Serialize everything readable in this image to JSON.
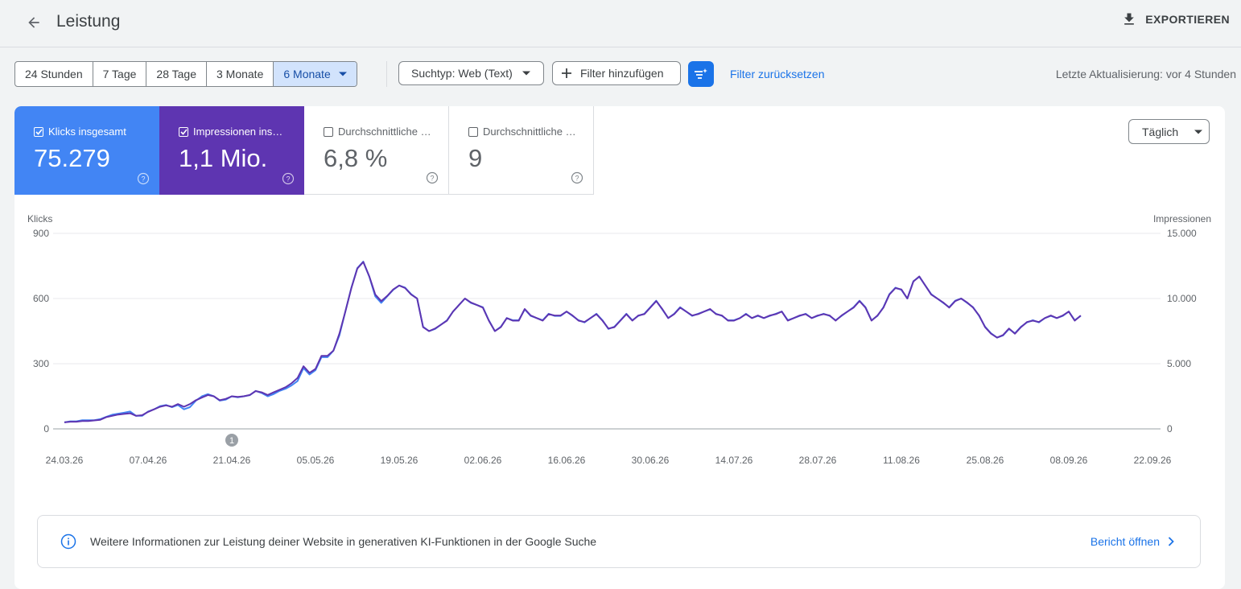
{
  "header": {
    "title": "Leistung",
    "export_label": "EXPORTIEREN",
    "back_icon": "arrow-back-icon",
    "export_icon": "download-icon"
  },
  "toolbar": {
    "ranges": [
      "24 Stunden",
      "7 Tage",
      "28 Tage",
      "3 Monate",
      "6 Monate"
    ],
    "active_range": "6 Monate",
    "search_type": "Suchtyp: Web (Text)",
    "add_filter": "Filter hinzufügen",
    "reset_filter": "Filter zurücksetzen",
    "last_update": "Letzte Aktualisierung: vor 4 Stunden"
  },
  "metrics": {
    "clicks": {
      "label": "Klicks insgesamt",
      "value": "75.279",
      "checked": true,
      "color": "#4285f4"
    },
    "impressions": {
      "label": "Impressionen ins…",
      "value": "1,1 Mio.",
      "checked": true,
      "color": "#5e35b1"
    },
    "ctr": {
      "label": "Durchschnittliche …",
      "value": "6,8 %",
      "checked": false
    },
    "position": {
      "label": "Durchschnittliche …",
      "value": "9",
      "checked": false
    }
  },
  "granularity": "Täglich",
  "chart_data": {
    "type": "line",
    "x_start": "24.03.26",
    "x_end": "22.09.26",
    "x_tick_labels": [
      "24.03.26",
      "07.04.26",
      "21.04.26",
      "05.05.26",
      "19.05.26",
      "02.06.26",
      "16.06.26",
      "30.06.26",
      "14.07.26",
      "28.07.26",
      "11.08.26",
      "25.08.26",
      "08.09.26",
      "22.09.26"
    ],
    "y_left_label": "Klicks",
    "y_left_ticks": [
      "900",
      "600",
      "300",
      "0"
    ],
    "y_left_range": [
      0,
      900
    ],
    "y_right_label": "Impressionen",
    "y_right_ticks": [
      "15.000",
      "10.000",
      "5.000",
      "0"
    ],
    "y_right_range": [
      0,
      15000
    ],
    "annotation": {
      "date": "21.04.26",
      "label": "1"
    },
    "grid": true,
    "series": [
      {
        "name": "Klicks insgesamt",
        "axis": "left",
        "color": "#4285f4",
        "values": [
          30,
          35,
          35,
          40,
          40,
          40,
          45,
          55,
          65,
          70,
          75,
          80,
          60,
          60,
          80,
          90,
          105,
          110,
          100,
          110,
          90,
          100,
          130,
          150,
          160,
          150,
          130,
          135,
          150,
          145,
          150,
          155,
          175,
          165,
          150,
          160,
          175,
          185,
          200,
          220,
          280,
          250,
          270,
          330,
          330,
          360,
          430,
          540,
          650,
          740,
          770,
          700,
          610,
          580,
          610,
          640,
          660,
          650,
          620,
          600,
          470,
          450,
          460,
          480,
          500,
          540,
          570,
          600,
          580,
          570,
          560,
          500,
          450,
          470,
          510,
          500,
          500,
          550,
          520,
          510,
          500,
          530,
          520,
          520,
          540,
          520,
          500,
          490,
          510,
          530,
          500,
          460,
          470,
          500,
          530,
          500,
          520,
          530,
          560,
          590,
          550,
          510,
          530,
          560,
          540,
          520,
          530,
          540,
          550,
          530,
          520,
          500,
          500,
          510,
          530,
          510,
          520,
          510,
          520,
          530,
          540,
          500,
          510,
          520,
          530,
          510,
          520,
          530,
          520,
          500,
          520,
          540,
          560,
          590,
          560,
          500,
          520,
          560,
          620,
          650,
          640,
          600,
          680,
          700,
          660,
          620,
          600,
          580,
          560,
          590,
          600,
          580,
          560,
          520,
          470,
          440,
          420,
          430,
          460,
          440,
          470,
          490,
          500,
          490,
          510,
          520,
          510,
          520,
          540,
          500,
          520
        ],
        "values_note": "daily clicks"
      },
      {
        "name": "Impressionen insgesamt",
        "axis": "right",
        "color": "#5e35b1",
        "values": [
          500,
          550,
          550,
          600,
          600,
          650,
          700,
          900,
          1000,
          1100,
          1150,
          1200,
          1000,
          1050,
          1300,
          1500,
          1700,
          1800,
          1700,
          1900,
          1700,
          1900,
          2200,
          2400,
          2600,
          2500,
          2200,
          2300,
          2500,
          2450,
          2500,
          2600,
          2900,
          2800,
          2600,
          2800,
          3000,
          3200,
          3500,
          3900,
          4800,
          4300,
          4600,
          5600,
          5600,
          6000,
          7300,
          9000,
          10800,
          12300,
          12800,
          11700,
          10300,
          9800,
          10200,
          10700,
          11000,
          10800,
          10300,
          10000,
          7800,
          7500,
          7700,
          8000,
          8300,
          9000,
          9500,
          10000,
          9700,
          9500,
          9300,
          8300,
          7500,
          7800,
          8500,
          8300,
          8300,
          9200,
          8700,
          8500,
          8300,
          8800,
          8700,
          8700,
          9000,
          8700,
          8300,
          8200,
          8500,
          8800,
          8300,
          7700,
          7800,
          8300,
          8800,
          8300,
          8700,
          8800,
          9300,
          9800,
          9200,
          8500,
          8800,
          9300,
          9000,
          8700,
          8800,
          9000,
          9200,
          8800,
          8700,
          8300,
          8300,
          8500,
          8800,
          8500,
          8700,
          8500,
          8700,
          8800,
          9000,
          8300,
          8500,
          8700,
          8800,
          8500,
          8700,
          8800,
          8700,
          8300,
          8700,
          9000,
          9300,
          9800,
          9300,
          8300,
          8700,
          9300,
          10300,
          10800,
          10700,
          10000,
          11300,
          11700,
          11000,
          10300,
          10000,
          9700,
          9300,
          9800,
          10000,
          9700,
          9300,
          8700,
          7800,
          7300,
          7000,
          7200,
          7700,
          7300,
          7800,
          8200,
          8300,
          8200,
          8500,
          8700,
          8500,
          8700,
          9000,
          8300,
          8700
        ],
        "values_note": "daily impressions"
      }
    ]
  },
  "info_bar": {
    "text": "Weitere Informationen zur Leistung deiner Website in generativen KI-Funktionen in der Google Suche",
    "link": "Bericht öffnen",
    "icon": "info-icon"
  }
}
